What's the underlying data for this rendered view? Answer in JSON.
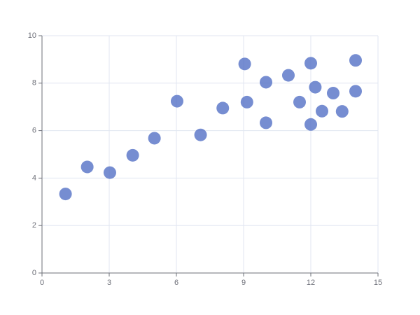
{
  "chart_data": {
    "type": "scatter",
    "x": [
      10.0,
      8.07,
      13.0,
      9.05,
      11.0,
      14.0,
      13.4,
      10.0,
      14.0,
      12.5,
      9.15,
      11.5,
      3.03,
      12.2,
      2.02,
      1.05,
      4.05,
      6.03,
      12.0,
      12.0,
      7.08,
      5.02
    ],
    "values": [
      8.04,
      6.95,
      7.58,
      8.81,
      8.33,
      7.66,
      6.81,
      6.33,
      8.96,
      6.82,
      7.2,
      7.2,
      4.23,
      7.83,
      4.47,
      3.33,
      4.96,
      7.24,
      6.26,
      8.84,
      5.82,
      5.68
    ],
    "color": "#5470c6",
    "xlim": [
      0,
      15
    ],
    "xticks": [
      0,
      3,
      6,
      9,
      12,
      15
    ],
    "ylim": [
      0,
      10
    ],
    "yticks": [
      0,
      2,
      4,
      6,
      8,
      10
    ],
    "grid": true
  }
}
